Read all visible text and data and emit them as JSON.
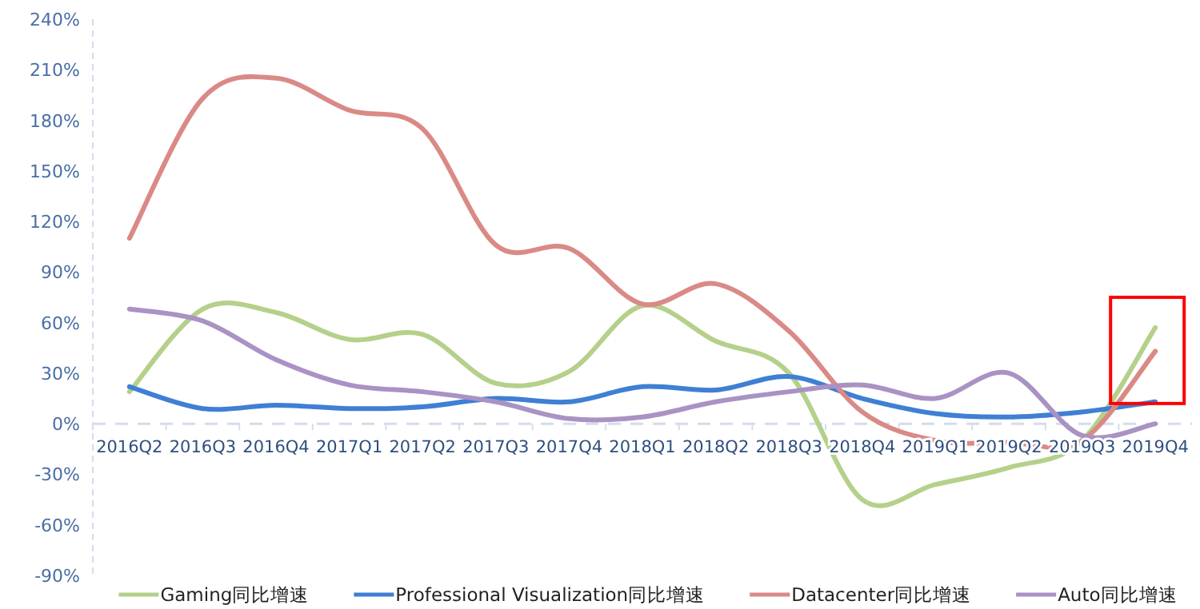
{
  "chart_data": {
    "type": "line",
    "categories": [
      "2016Q2",
      "2016Q3",
      "2016Q4",
      "2017Q1",
      "2017Q2",
      "2017Q3",
      "2017Q4",
      "2018Q1",
      "2018Q2",
      "2018Q3",
      "2018Q4",
      "2019Q1",
      "2019Q2",
      "2019Q3",
      "2019Q4"
    ],
    "series": [
      {
        "name": "Gaming同比增速",
        "color": "#b5d08a",
        "values": [
          19,
          68,
          66,
          50,
          53,
          24,
          31,
          70,
          49,
          30,
          -45,
          -36,
          -26,
          -10,
          57
        ]
      },
      {
        "name": "Professional Visualization同比增速",
        "color": "#3f7fd4",
        "values": [
          22,
          9,
          11,
          9,
          10,
          15,
          13,
          22,
          20,
          28,
          15,
          6,
          4,
          7,
          13
        ]
      },
      {
        "name": "Datacenter同比增速",
        "color": "#da8a86",
        "values": [
          110,
          193,
          205,
          186,
          175,
          106,
          104,
          71,
          83,
          55,
          7,
          -10,
          -11,
          -10,
          43
        ]
      },
      {
        "name": "Auto同比增速",
        "color": "#a992c4",
        "values": [
          68,
          61,
          38,
          23,
          19,
          13,
          3,
          4,
          13,
          19,
          23,
          15,
          30,
          -7,
          0
        ]
      }
    ],
    "ylim": [
      -90,
      240
    ],
    "yticks": [
      {
        "value": -90,
        "label": "-90%"
      },
      {
        "value": -60,
        "label": "-60%"
      },
      {
        "value": -30,
        "label": "-30%"
      },
      {
        "value": 0,
        "label": "0%"
      },
      {
        "value": 30,
        "label": "30%"
      },
      {
        "value": 60,
        "label": "60%"
      },
      {
        "value": 90,
        "label": "90%"
      },
      {
        "value": 120,
        "label": "120%"
      },
      {
        "value": 150,
        "label": "150%"
      },
      {
        "value": 180,
        "label": "180%"
      },
      {
        "value": 210,
        "label": "210%"
      },
      {
        "value": 240,
        "label": "240%"
      }
    ],
    "ref_lines": [
      {
        "axis": "y",
        "value": 0,
        "color": "#d5dcec",
        "line_style": "dashed"
      }
    ],
    "grid": false,
    "legend": "bottom",
    "marker": "none",
    "line_style": "solid"
  }
}
